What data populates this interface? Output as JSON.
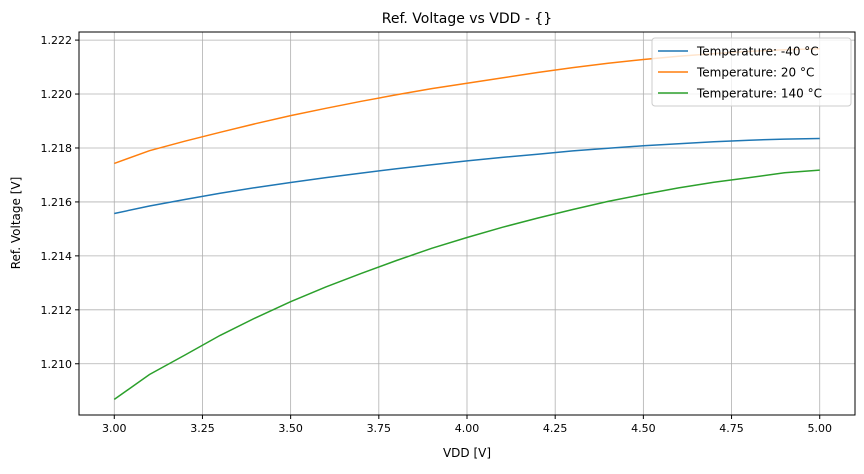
{
  "chart_data": {
    "type": "line",
    "title": "Ref. Voltage vs VDD - {}",
    "xlabel": "VDD [V]",
    "ylabel": "Ref. Voltage [V]",
    "xlim": [
      2.9,
      5.1
    ],
    "ylim": [
      1.2081,
      1.2223
    ],
    "xticks": [
      3.0,
      3.25,
      3.5,
      3.75,
      4.0,
      4.25,
      4.5,
      4.75,
      5.0
    ],
    "xtick_labels": [
      "3.00",
      "3.25",
      "3.50",
      "3.75",
      "4.00",
      "4.25",
      "4.50",
      "4.75",
      "5.00"
    ],
    "yticks": [
      1.21,
      1.212,
      1.214,
      1.216,
      1.218,
      1.22,
      1.222
    ],
    "ytick_labels": [
      "1.210",
      "1.212",
      "1.214",
      "1.216",
      "1.218",
      "1.220",
      "1.222"
    ],
    "grid": true,
    "legend_position": "top-right",
    "x": [
      3.0,
      3.1,
      3.2,
      3.3,
      3.4,
      3.5,
      3.6,
      3.7,
      3.8,
      3.9,
      4.0,
      4.1,
      4.2,
      4.3,
      4.4,
      4.5,
      4.6,
      4.7,
      4.8,
      4.9,
      5.0
    ],
    "series": [
      {
        "name": "Temperature: -40 °C",
        "color": "#1f77b4",
        "values": [
          1.21557,
          1.21585,
          1.21609,
          1.21632,
          1.21653,
          1.21672,
          1.2169,
          1.21707,
          1.21723,
          1.21738,
          1.21752,
          1.21765,
          1.21777,
          1.21789,
          1.21799,
          1.21808,
          1.21816,
          1.21823,
          1.21829,
          1.21833,
          1.21835
        ]
      },
      {
        "name": "Temperature: 20 °C",
        "color": "#ff7f0e",
        "values": [
          1.21743,
          1.2179,
          1.21825,
          1.21858,
          1.2189,
          1.2192,
          1.21947,
          1.21973,
          1.21997,
          1.2202,
          1.2204,
          1.2206,
          1.2208,
          1.22098,
          1.22114,
          1.22128,
          1.2214,
          1.2215,
          1.22158,
          1.22164,
          1.22168
        ]
      },
      {
        "name": "Temperature: 140 °C",
        "color": "#2ca02c",
        "values": [
          1.20868,
          1.2096,
          1.21032,
          1.21105,
          1.2117,
          1.2123,
          1.21285,
          1.21335,
          1.21383,
          1.21428,
          1.21468,
          1.21506,
          1.2154,
          1.21572,
          1.21602,
          1.21628,
          1.21652,
          1.21673,
          1.2169,
          1.21708,
          1.21718
        ]
      }
    ]
  }
}
